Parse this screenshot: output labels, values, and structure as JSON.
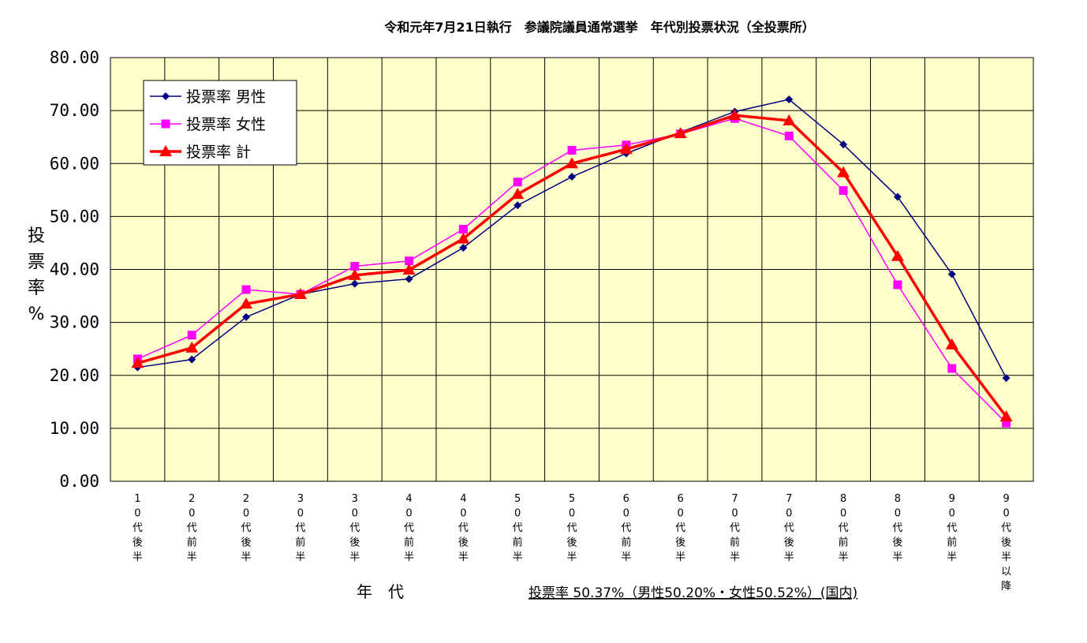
{
  "chart_data": {
    "type": "line",
    "title": "令和元年7月21日執行　参議院議員通常選挙　年代別投票状況（全投票所）",
    "ylabel": [
      "投",
      "票",
      "率",
      "%"
    ],
    "xlabel": "年　代",
    "note": "投票率 50.37%（男性50.20%・女性50.52%）(国内)",
    "ylim": [
      0,
      80
    ],
    "yticks": [
      "0.00",
      "10.00",
      "20.00",
      "30.00",
      "40.00",
      "50.00",
      "60.00",
      "70.00",
      "80.00"
    ],
    "categories": [
      [
        "1",
        "0",
        "代",
        "後",
        "半"
      ],
      [
        "2",
        "0",
        "代",
        "前",
        "半"
      ],
      [
        "2",
        "0",
        "代",
        "後",
        "半"
      ],
      [
        "3",
        "0",
        "代",
        "前",
        "半"
      ],
      [
        "3",
        "0",
        "代",
        "後",
        "半"
      ],
      [
        "4",
        "0",
        "代",
        "前",
        "半"
      ],
      [
        "4",
        "0",
        "代",
        "後",
        "半"
      ],
      [
        "5",
        "0",
        "代",
        "前",
        "半"
      ],
      [
        "5",
        "0",
        "代",
        "後",
        "半"
      ],
      [
        "6",
        "0",
        "代",
        "前",
        "半"
      ],
      [
        "6",
        "0",
        "代",
        "後",
        "半"
      ],
      [
        "7",
        "0",
        "代",
        "前",
        "半"
      ],
      [
        "7",
        "0",
        "代",
        "後",
        "半"
      ],
      [
        "8",
        "0",
        "代",
        "前",
        "半"
      ],
      [
        "8",
        "0",
        "代",
        "後",
        "半"
      ],
      [
        "9",
        "0",
        "代",
        "前",
        "半"
      ],
      [
        "9",
        "0",
        "代",
        "後",
        "半",
        "以",
        "降"
      ]
    ],
    "series": [
      {
        "name": "投票率 男性",
        "color": "#000080",
        "marker": "diamond",
        "values": [
          21.5,
          23.0,
          31.0,
          35.3,
          37.3,
          38.2,
          44.1,
          52.1,
          57.5,
          61.9,
          65.9,
          69.8,
          72.1,
          63.6,
          53.7,
          39.1,
          19.5
        ]
      },
      {
        "name": "投票率 女性",
        "color": "#ff00ff",
        "marker": "square",
        "values": [
          23.1,
          27.6,
          36.2,
          35.3,
          40.6,
          41.6,
          47.6,
          56.5,
          62.5,
          63.5,
          65.6,
          68.5,
          65.2,
          54.9,
          37.1,
          21.3,
          11.0
        ]
      },
      {
        "name": "投票率 計",
        "color": "#ff0000",
        "marker": "triangle",
        "values": [
          22.3,
          25.2,
          33.5,
          35.3,
          38.9,
          39.9,
          45.8,
          54.2,
          60.0,
          62.7,
          65.7,
          69.1,
          68.1,
          58.3,
          42.5,
          25.8,
          12.2
        ]
      }
    ],
    "grid": true,
    "legend_position": "top-left",
    "plot_background": "#ffffcc"
  }
}
